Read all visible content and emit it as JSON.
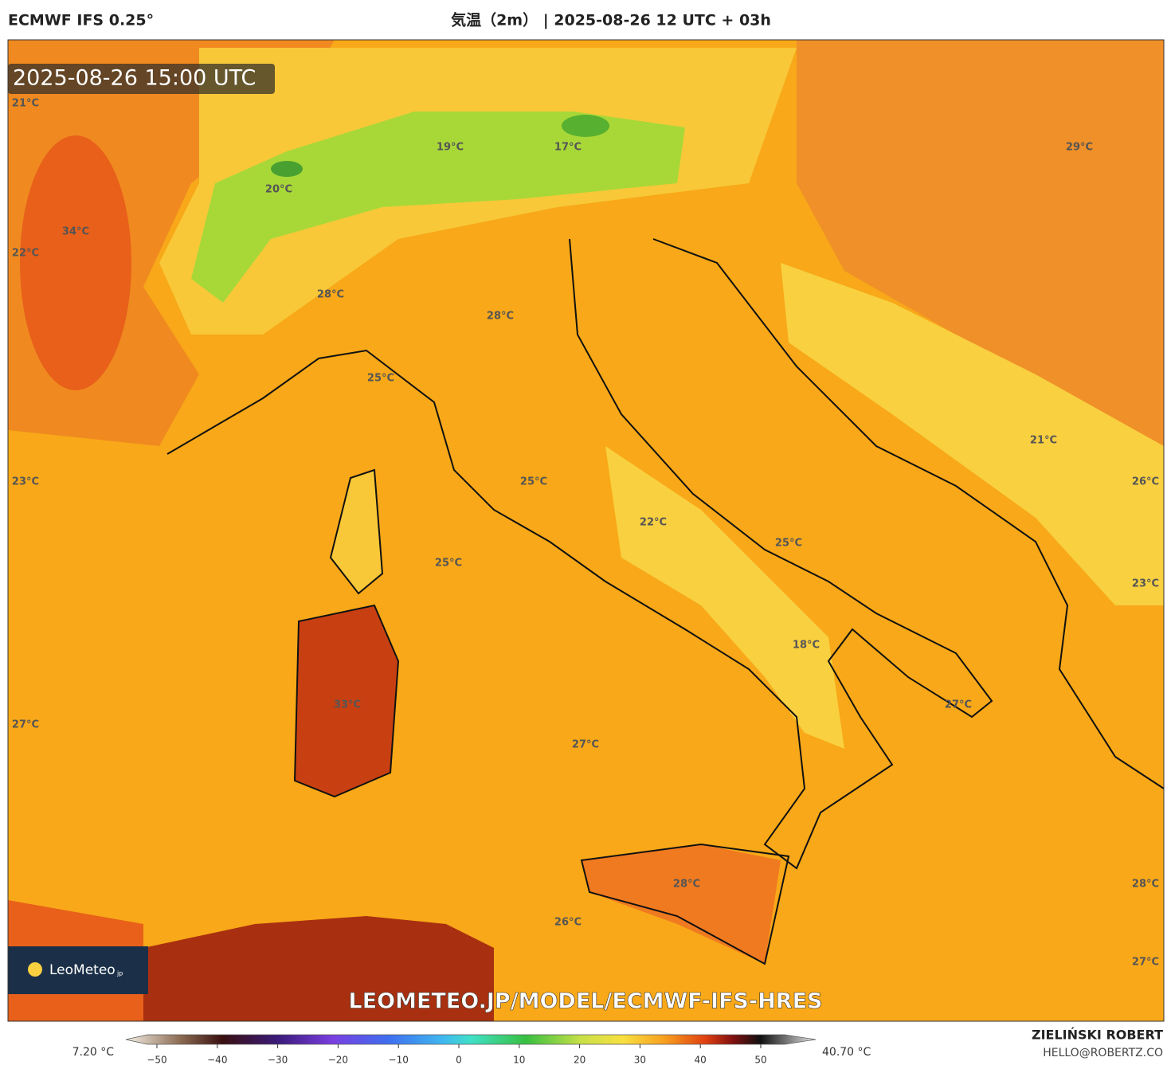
{
  "header": {
    "model": "ECMWF IFS 0.25°",
    "title": "気温（2m） | 2025-08-26 12 UTC + 03h"
  },
  "map": {
    "valid_time": "2025-08-26 15:00 UTC",
    "labels": [
      "21°C",
      "19°C",
      "17°C",
      "29°C",
      "20°C",
      "34°C",
      "22°C",
      "28°C",
      "28°C",
      "25°C",
      "21°C",
      "23°C",
      "25°C",
      "26°C",
      "22°C",
      "25°C",
      "25°C",
      "23°C",
      "18°C",
      "33°C",
      "27°C",
      "27°C",
      "27°C",
      "28°C",
      "28°C",
      "26°C",
      "27°C"
    ],
    "logo": {
      "name": "LeoMeteo",
      "suffix": "jp"
    },
    "url": "LEOMETEO.JP/MODEL/ECMWF-IFS-HRES"
  },
  "colorbar": {
    "min_label": "7.20 °C",
    "max_label": "40.70 °C",
    "ticks": [
      {
        "value": -50,
        "label": "−50"
      },
      {
        "value": -40,
        "label": "−40"
      },
      {
        "value": -30,
        "label": "−30"
      },
      {
        "value": -20,
        "label": "−20"
      },
      {
        "value": -10,
        "label": "−10"
      },
      0,
      10,
      20,
      30,
      40,
      50
    ]
  },
  "footer": {
    "author": "ZIELIŃSKI ROBERT",
    "email": "HELLO@ROBERTZ.CO"
  }
}
